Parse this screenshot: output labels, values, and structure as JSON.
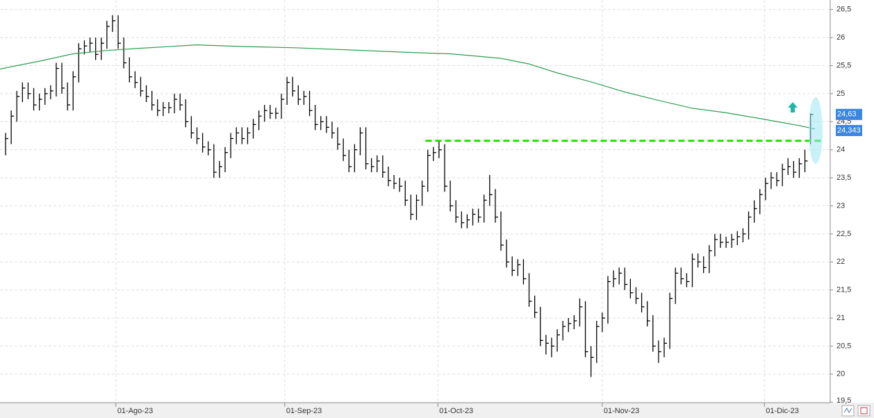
{
  "chart_data": {
    "type": "ohlc",
    "ylim": [
      19.49,
      26.67
    ],
    "yticks": [
      {
        "value": 19.5,
        "label": "19,5"
      },
      20,
      {
        "value": 20.5,
        "label": "20,5"
      },
      21,
      {
        "value": 21.5,
        "label": "21,5"
      },
      22,
      {
        "value": 22.5,
        "label": "22,5"
      },
      23,
      {
        "value": 23.5,
        "label": "23,5"
      },
      24,
      {
        "value": 24.5,
        "label": "24,5"
      },
      25,
      {
        "value": 25.5,
        "label": "25,5"
      },
      26,
      {
        "value": 26.5,
        "label": "26,5"
      }
    ],
    "xlim": [
      -0.99,
      146.5
    ],
    "xticks": [
      {
        "value": 19.6,
        "label": "01-Ago-23"
      },
      {
        "value": 49.6,
        "label": "01-Sep-23"
      },
      {
        "value": 76.8,
        "label": "01-Oct-23"
      },
      {
        "value": 106,
        "label": "01-Nov-23"
      },
      {
        "value": 134.8,
        "label": "01-Dic-23"
      }
    ],
    "grid": true,
    "ohlc": {
      "color": "#000000",
      "high": [
        24.3,
        24.7,
        25.05,
        25.2,
        25.2,
        25.1,
        25.0,
        25.1,
        25.15,
        25.55,
        25.55,
        25.2,
        25.4,
        25.9,
        25.95,
        26.0,
        26.0,
        26.0,
        26.3,
        26.4,
        26.4,
        26.0,
        25.65,
        25.4,
        25.3,
        25.15,
        25.05,
        24.9,
        24.85,
        24.85,
        25.0,
        25.0,
        24.9,
        24.6,
        24.4,
        24.3,
        24.15,
        24.1,
        23.8,
        24.05,
        24.3,
        24.4,
        24.4,
        24.4,
        24.55,
        24.7,
        24.8,
        24.8,
        24.75,
        25.0,
        25.3,
        25.3,
        25.15,
        25.05,
        25.05,
        24.8,
        24.6,
        24.6,
        24.5,
        24.4,
        24.2,
        24.0,
        24.1,
        24.4,
        24.4,
        23.85,
        23.9,
        23.9,
        23.7,
        23.55,
        23.5,
        23.45,
        23.2,
        23.2,
        23.45,
        24.0,
        24.05,
        24.15,
        24.1,
        23.45,
        23.1,
        22.9,
        22.85,
        22.95,
        22.95,
        23.2,
        23.55,
        23.3,
        22.9,
        22.4,
        22.1,
        22.05,
        22.05,
        21.8,
        21.4,
        21.2,
        20.7,
        20.65,
        20.8,
        20.95,
        21.0,
        21.05,
        21.35,
        21.3,
        20.5,
        20.95,
        21.1,
        21.75,
        21.85,
        21.9,
        21.9,
        21.7,
        21.55,
        21.45,
        21.3,
        21.05,
        20.6,
        20.65,
        21.45,
        21.9,
        21.9,
        21.8,
        22.15,
        22.15,
        22.1,
        22.3,
        22.5,
        22.5,
        22.45,
        22.5,
        22.55,
        22.6,
        22.9,
        23.1,
        23.3,
        23.5,
        23.6,
        23.6,
        23.75,
        23.85,
        23.8,
        23.85,
        24.0,
        24.65
      ],
      "low": [
        23.9,
        24.1,
        24.5,
        24.85,
        24.9,
        24.7,
        24.7,
        24.8,
        24.9,
        24.95,
        25.0,
        24.7,
        24.7,
        25.2,
        25.7,
        25.75,
        25.6,
        25.6,
        25.8,
        26.1,
        25.8,
        25.45,
        25.2,
        25.1,
        24.95,
        24.85,
        24.7,
        24.6,
        24.6,
        24.65,
        24.65,
        24.7,
        24.4,
        24.2,
        24.1,
        23.95,
        23.9,
        23.5,
        23.5,
        23.6,
        23.85,
        24.1,
        24.1,
        24.1,
        24.2,
        24.35,
        24.5,
        24.55,
        24.55,
        24.55,
        24.8,
        24.95,
        24.8,
        24.8,
        24.6,
        24.35,
        24.35,
        24.3,
        24.2,
        24.0,
        23.8,
        23.6,
        23.6,
        23.9,
        23.65,
        23.6,
        23.6,
        23.5,
        23.35,
        23.3,
        23.25,
        23.0,
        22.75,
        22.75,
        23.0,
        23.25,
        23.8,
        23.85,
        23.25,
        22.9,
        22.7,
        22.6,
        22.6,
        22.65,
        22.7,
        22.7,
        23.0,
        22.7,
        22.2,
        21.9,
        21.75,
        21.75,
        21.6,
        21.2,
        21.0,
        20.5,
        20.35,
        20.3,
        20.4,
        20.6,
        20.75,
        20.8,
        20.85,
        20.3,
        19.95,
        20.2,
        20.75,
        20.9,
        21.55,
        21.6,
        21.5,
        21.35,
        21.25,
        21.1,
        20.85,
        20.4,
        20.2,
        20.3,
        20.45,
        21.25,
        21.6,
        21.55,
        21.55,
        21.9,
        21.8,
        21.8,
        22.1,
        22.25,
        22.25,
        22.25,
        22.3,
        22.35,
        22.4,
        22.7,
        22.85,
        23.1,
        23.3,
        23.35,
        23.35,
        23.55,
        23.5,
        23.5,
        23.6,
        24.1
      ],
      "close": [
        24.2,
        24.6,
        24.95,
        25.1,
        25.0,
        24.8,
        24.9,
        25.0,
        25.05,
        25.45,
        25.1,
        24.8,
        25.3,
        25.8,
        25.85,
        25.9,
        25.7,
        25.9,
        26.2,
        26.3,
        25.9,
        25.55,
        25.3,
        25.2,
        25.05,
        24.95,
        24.8,
        24.7,
        24.75,
        24.75,
        24.9,
        24.8,
        24.5,
        24.3,
        24.2,
        24.05,
        24.0,
        23.6,
        23.7,
        23.95,
        24.2,
        24.3,
        24.2,
        24.3,
        24.45,
        24.6,
        24.7,
        24.65,
        24.65,
        24.9,
        25.2,
        25.05,
        24.9,
        24.95,
        24.7,
        24.45,
        24.5,
        24.4,
        24.3,
        24.1,
        23.9,
        23.7,
        24.0,
        24.3,
        23.75,
        23.7,
        23.8,
        23.6,
        23.45,
        23.4,
        23.35,
        23.1,
        22.85,
        23.1,
        23.35,
        23.9,
        23.95,
        24.0,
        23.35,
        23.0,
        22.8,
        22.7,
        22.75,
        22.85,
        22.8,
        23.1,
        23.2,
        22.8,
        22.3,
        22.0,
        21.85,
        21.95,
        21.7,
        21.3,
        21.1,
        20.6,
        20.55,
        20.5,
        20.7,
        20.85,
        20.9,
        20.95,
        21.2,
        20.4,
        20.3,
        20.85,
        21.0,
        21.65,
        21.7,
        21.8,
        21.6,
        21.45,
        21.35,
        21.2,
        20.95,
        20.5,
        20.4,
        20.55,
        21.35,
        21.8,
        21.7,
        21.65,
        22.05,
        22.0,
        21.9,
        22.2,
        22.4,
        22.35,
        22.35,
        22.4,
        22.45,
        22.5,
        22.8,
        22.95,
        23.2,
        23.4,
        23.5,
        23.45,
        23.65,
        23.7,
        23.6,
        23.75,
        23.8,
        24.63
      ]
    },
    "ma": {
      "color": "#2e9e4f",
      "x": [
        -1,
        6,
        12,
        18,
        24,
        34,
        42,
        51,
        61,
        73,
        79,
        88,
        93,
        98,
        104,
        110,
        116,
        122,
        128,
        135,
        141,
        143.8
      ],
      "values": [
        25.44,
        25.58,
        25.71,
        25.77,
        25.81,
        25.87,
        25.84,
        25.82,
        25.78,
        25.73,
        25.71,
        25.63,
        25.53,
        25.37,
        25.21,
        25.03,
        24.88,
        24.74,
        24.66,
        24.54,
        24.43,
        24.37
      ]
    },
    "level_line": {
      "value": 24.16,
      "from": 74.6,
      "color": "#22dd00"
    },
    "price_labels": [
      {
        "value": 24.63,
        "label": "24,63"
      },
      {
        "value": 24.343,
        "label": "24,343"
      }
    ],
    "price_label_color": "#3a86e0"
  }
}
